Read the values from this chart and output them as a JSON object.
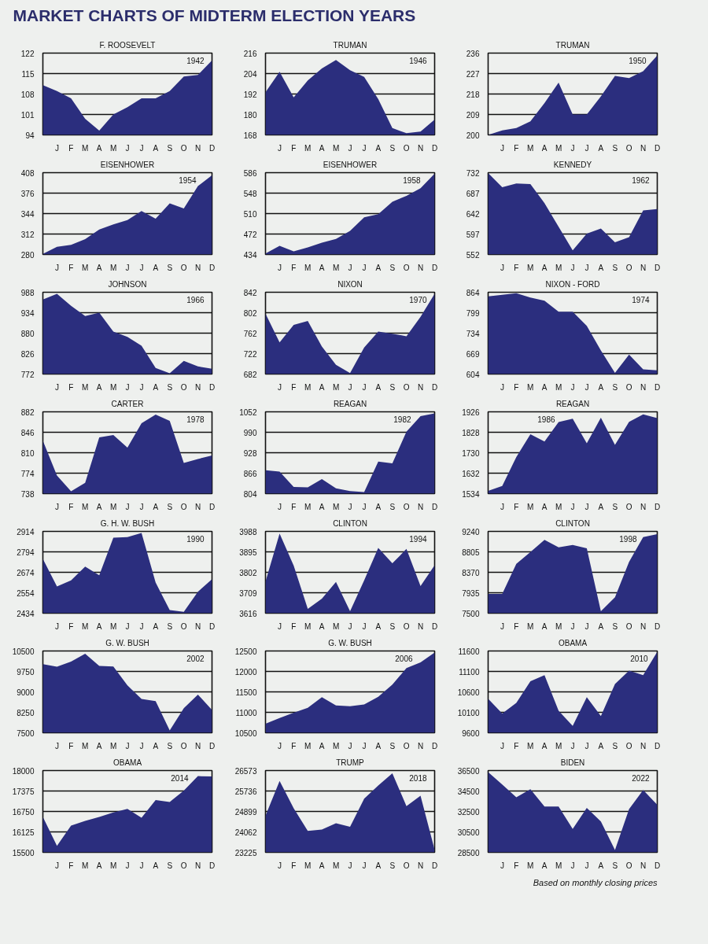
{
  "chart_data": [
    {
      "type": "area",
      "title": "MARKET CHARTS OF MIDTERM ELECTION YEARS",
      "subtitle": "F. ROOSEVELT",
      "annotations": [
        "1942"
      ],
      "categories": [
        null,
        "J",
        "F",
        "M",
        "A",
        "M",
        "J",
        "J",
        "A",
        "S",
        "O",
        "N",
        "D"
      ],
      "values": [
        111,
        109,
        106.5,
        99.5,
        95.5,
        101,
        103.5,
        106.5,
        106.5,
        109,
        114,
        114.5,
        119.5
      ],
      "color": "#2b2e7e",
      "ylim": [
        94,
        122
      ],
      "yticks": [
        94,
        101,
        108,
        115,
        122
      ],
      "grid": "y"
    },
    {
      "type": "area",
      "title": "TRUMAN",
      "annotations": [
        "1946"
      ],
      "categories": [
        null,
        "J",
        "F",
        "M",
        "A",
        "M",
        "J",
        "J",
        "A",
        "S",
        "O",
        "N",
        "D"
      ],
      "values": [
        193,
        205,
        190,
        200,
        207,
        212,
        206,
        202,
        189,
        172,
        169,
        170,
        177
      ],
      "color": "#2b2e7e",
      "ylim": [
        168,
        216
      ],
      "yticks": [
        168,
        180,
        192,
        204,
        216
      ],
      "grid": "y"
    },
    {
      "type": "area",
      "title": "TRUMAN",
      "annotations": [
        "1950"
      ],
      "categories": [
        null,
        "J",
        "F",
        "M",
        "A",
        "M",
        "J",
        "J",
        "A",
        "S",
        "O",
        "N",
        "D"
      ],
      "values": [
        200,
        202,
        203,
        206,
        214,
        223,
        209,
        209,
        217,
        226,
        225,
        228,
        235
      ],
      "color": "#2b2e7e",
      "ylim": [
        200,
        236
      ],
      "yticks": [
        200,
        209,
        218,
        227,
        236
      ],
      "grid": "y"
    },
    {
      "type": "area",
      "title": "EISENHOWER",
      "annotations": [
        "1954"
      ],
      "categories": [
        null,
        "J",
        "F",
        "M",
        "A",
        "M",
        "J",
        "J",
        "A",
        "S",
        "O",
        "N",
        "D"
      ],
      "values": [
        281,
        292,
        295,
        304,
        319,
        327,
        334,
        348,
        336,
        360,
        352,
        387,
        404
      ],
      "color": "#2b2e7e",
      "ylim": [
        280,
        408
      ],
      "yticks": [
        280,
        312,
        344,
        376,
        408
      ],
      "grid": "y"
    },
    {
      "type": "area",
      "title": "EISENHOWER",
      "annotations": [
        "1958"
      ],
      "categories": [
        null,
        "J",
        "F",
        "M",
        "A",
        "M",
        "J",
        "J",
        "A",
        "S",
        "O",
        "N",
        "D"
      ],
      "values": [
        436,
        450,
        440,
        447,
        456,
        463,
        478,
        503,
        509,
        532,
        543,
        557,
        584
      ],
      "color": "#2b2e7e",
      "ylim": [
        434,
        586
      ],
      "yticks": [
        434,
        472,
        510,
        548,
        586
      ],
      "grid": "y"
    },
    {
      "type": "area",
      "title": "KENNEDY",
      "annotations": [
        "1962"
      ],
      "categories": [
        null,
        "J",
        "F",
        "M",
        "A",
        "M",
        "J",
        "J",
        "A",
        "S",
        "O",
        "N",
        "D"
      ],
      "values": [
        731,
        700,
        708,
        707,
        665,
        613,
        561,
        598,
        609,
        579,
        590,
        649,
        652
      ],
      "color": "#2b2e7e",
      "ylim": [
        552,
        732
      ],
      "yticks": [
        552,
        597,
        642,
        687,
        732
      ],
      "grid": "y"
    },
    {
      "type": "area",
      "title": "JOHNSON",
      "annotations": [
        "1966"
      ],
      "categories": [
        null,
        "J",
        "F",
        "M",
        "A",
        "M",
        "J",
        "J",
        "A",
        "S",
        "O",
        "N",
        "D"
      ],
      "values": [
        969,
        984,
        952,
        925,
        934,
        884,
        870,
        847,
        788,
        774,
        807,
        792,
        786
      ],
      "color": "#2b2e7e",
      "ylim": [
        772,
        988
      ],
      "yticks": [
        772,
        826,
        880,
        934,
        988
      ],
      "grid": "y"
    },
    {
      "type": "area",
      "title": "NIXON",
      "annotations": [
        "1970"
      ],
      "categories": [
        null,
        "J",
        "F",
        "M",
        "A",
        "M",
        "J",
        "J",
        "A",
        "S",
        "O",
        "N",
        "D"
      ],
      "values": [
        800,
        744,
        778,
        786,
        736,
        700,
        684,
        734,
        765,
        761,
        756,
        794,
        839
      ],
      "color": "#2b2e7e",
      "ylim": [
        682,
        842
      ],
      "yticks": [
        682,
        722,
        762,
        802,
        842
      ],
      "grid": "y"
    },
    {
      "type": "area",
      "title": "NIXON - FORD",
      "annotations": [
        "1974"
      ],
      "categories": [
        null,
        "J",
        "F",
        "M",
        "A",
        "M",
        "J",
        "J",
        "A",
        "S",
        "O",
        "N",
        "D"
      ],
      "values": [
        851,
        856,
        861,
        847,
        837,
        802,
        802,
        757,
        679,
        608,
        666,
        619,
        616
      ],
      "color": "#2b2e7e",
      "ylim": [
        604,
        864
      ],
      "yticks": [
        604,
        669,
        734,
        799,
        864
      ],
      "grid": "y"
    },
    {
      "type": "area",
      "title": "CARTER",
      "annotations": [
        "1978"
      ],
      "categories": [
        null,
        "J",
        "F",
        "M",
        "A",
        "M",
        "J",
        "J",
        "A",
        "S",
        "O",
        "N",
        "D"
      ],
      "values": [
        831,
        770,
        742,
        757,
        837,
        841,
        819,
        862,
        877,
        866,
        792,
        799,
        805
      ],
      "color": "#2b2e7e",
      "ylim": [
        738,
        882
      ],
      "yticks": [
        738,
        774,
        810,
        846,
        882
      ],
      "grid": "y"
    },
    {
      "type": "area",
      "title": "REAGAN",
      "annotations": [
        "1982"
      ],
      "categories": [
        null,
        "J",
        "F",
        "M",
        "A",
        "M",
        "J",
        "J",
        "A",
        "S",
        "O",
        "N",
        "D"
      ],
      "values": [
        875,
        871,
        824,
        823,
        848,
        820,
        812,
        809,
        901,
        896,
        992,
        1039,
        1047
      ],
      "color": "#2b2e7e",
      "ylim": [
        804,
        1052
      ],
      "yticks": [
        804,
        866,
        928,
        990,
        1052
      ],
      "grid": "y"
    },
    {
      "type": "area",
      "title": "REAGAN",
      "annotations": [
        "1986"
      ],
      "categories": [
        null,
        "J",
        "F",
        "M",
        "A",
        "M",
        "J",
        "J",
        "A",
        "S",
        "O",
        "N",
        "D"
      ],
      "values": [
        1547,
        1571,
        1709,
        1819,
        1784,
        1877,
        1893,
        1775,
        1898,
        1768,
        1878,
        1914,
        1896
      ],
      "color": "#2b2e7e",
      "ylim": [
        1534,
        1926
      ],
      "yticks": [
        1534,
        1632,
        1730,
        1828,
        1926
      ],
      "grid": "y"
    },
    {
      "type": "area",
      "title": "G. H. W. BUSH",
      "annotations": [
        "1990"
      ],
      "categories": [
        null,
        "J",
        "F",
        "M",
        "A",
        "M",
        "J",
        "J",
        "A",
        "S",
        "O",
        "N",
        "D"
      ],
      "values": [
        2753,
        2591,
        2627,
        2707,
        2657,
        2877,
        2881,
        2905,
        2614,
        2452,
        2442,
        2560,
        2634
      ],
      "color": "#2b2e7e",
      "ylim": [
        2434,
        2914
      ],
      "yticks": [
        2434,
        2554,
        2674,
        2794,
        2914
      ],
      "grid": "y"
    },
    {
      "type": "area",
      "title": "CLINTON",
      "annotations": [
        "1994"
      ],
      "categories": [
        null,
        "J",
        "F",
        "M",
        "A",
        "M",
        "J",
        "J",
        "A",
        "S",
        "O",
        "N",
        "D"
      ],
      "values": [
        3760,
        3978,
        3832,
        3636,
        3682,
        3758,
        3625,
        3765,
        3913,
        3843,
        3908,
        3739,
        3834
      ],
      "color": "#2b2e7e",
      "ylim": [
        3616,
        3988
      ],
      "yticks": [
        3616,
        3709,
        3802,
        3895,
        3988
      ],
      "grid": "y"
    },
    {
      "type": "area",
      "title": "CLINTON",
      "annotations": [
        "1998"
      ],
      "categories": [
        null,
        "J",
        "F",
        "M",
        "A",
        "M",
        "J",
        "J",
        "A",
        "S",
        "O",
        "N",
        "D"
      ],
      "values": [
        7910,
        7910,
        8550,
        8800,
        9060,
        8900,
        8950,
        8880,
        7540,
        7840,
        8590,
        9120,
        9180
      ],
      "color": "#2b2e7e",
      "ylim": [
        7500,
        9240
      ],
      "yticks": [
        7500,
        7935,
        8370,
        8805,
        9240
      ],
      "grid": "y"
    },
    {
      "type": "area",
      "title": "G. W. BUSH",
      "annotations": [
        "2002"
      ],
      "categories": [
        null,
        "J",
        "F",
        "M",
        "A",
        "M",
        "J",
        "J",
        "A",
        "S",
        "O",
        "N",
        "D"
      ],
      "values": [
        10020,
        9920,
        10110,
        10400,
        9950,
        9930,
        9240,
        8740,
        8660,
        7590,
        8400,
        8900,
        8340
      ],
      "color": "#2b2e7e",
      "ylim": [
        7500,
        10500
      ],
      "yticks": [
        7500,
        8250,
        9000,
        9750,
        10500
      ],
      "grid": "y"
    },
    {
      "type": "area",
      "title": "G. W. BUSH",
      "annotations": [
        "2006"
      ],
      "categories": [
        null,
        "J",
        "F",
        "M",
        "A",
        "M",
        "J",
        "J",
        "A",
        "S",
        "O",
        "N",
        "D"
      ],
      "values": [
        10720,
        10860,
        10990,
        11110,
        11370,
        11170,
        11150,
        11190,
        11380,
        11680,
        12080,
        12220,
        12460
      ],
      "color": "#2b2e7e",
      "ylim": [
        10500,
        12500
      ],
      "yticks": [
        10500,
        11000,
        11500,
        12000,
        12500
      ],
      "grid": "y"
    },
    {
      "type": "area",
      "title": "OBAMA",
      "annotations": [
        "2010"
      ],
      "categories": [
        null,
        "J",
        "F",
        "M",
        "A",
        "M",
        "J",
        "J",
        "A",
        "S",
        "O",
        "N",
        "D"
      ],
      "values": [
        10430,
        10070,
        10330,
        10860,
        11010,
        10140,
        9770,
        10470,
        10010,
        10790,
        11120,
        11010,
        11580
      ],
      "color": "#2b2e7e",
      "ylim": [
        9600,
        11600
      ],
      "yticks": [
        9600,
        10100,
        10600,
        11100,
        11600
      ],
      "grid": "y"
    },
    {
      "type": "area",
      "title": "OBAMA",
      "annotations": [
        "2014"
      ],
      "categories": [
        null,
        "J",
        "F",
        "M",
        "A",
        "M",
        "J",
        "J",
        "A",
        "S",
        "O",
        "N",
        "D"
      ],
      "values": [
        16580,
        15700,
        16320,
        16460,
        16580,
        16720,
        16830,
        16560,
        17100,
        17040,
        17390,
        17830,
        17820
      ],
      "color": "#2b2e7e",
      "ylim": [
        15500,
        18000
      ],
      "yticks": [
        15500,
        16125,
        16750,
        17375,
        18000
      ],
      "grid": "y"
    },
    {
      "type": "area",
      "title": "TRUMP",
      "annotations": [
        "2018"
      ],
      "categories": [
        null,
        "J",
        "F",
        "M",
        "A",
        "M",
        "J",
        "J",
        "A",
        "S",
        "O",
        "N",
        "D"
      ],
      "values": [
        24720,
        26150,
        25030,
        24100,
        24160,
        24420,
        24270,
        25420,
        25960,
        26460,
        25120,
        25540,
        23330
      ],
      "color": "#2b2e7e",
      "ylim": [
        23225,
        26573
      ],
      "yticks": [
        23225,
        24062,
        24899,
        25736,
        26573
      ],
      "grid": "y"
    },
    {
      "type": "area",
      "title": "BIDEN",
      "annotations": [
        "2022",
        "Based on monthly closing prices"
      ],
      "categories": [
        null,
        "J",
        "F",
        "M",
        "A",
        "M",
        "J",
        "J",
        "A",
        "S",
        "O",
        "N",
        "D"
      ],
      "values": [
        36340,
        35130,
        33890,
        34680,
        32980,
        32990,
        30780,
        32850,
        31510,
        28730,
        32730,
        34590,
        33150
      ],
      "color": "#2b2e7e",
      "ylim": [
        28500,
        36500
      ],
      "yticks": [
        28500,
        30500,
        32500,
        34500,
        36500
      ],
      "grid": "y"
    }
  ]
}
